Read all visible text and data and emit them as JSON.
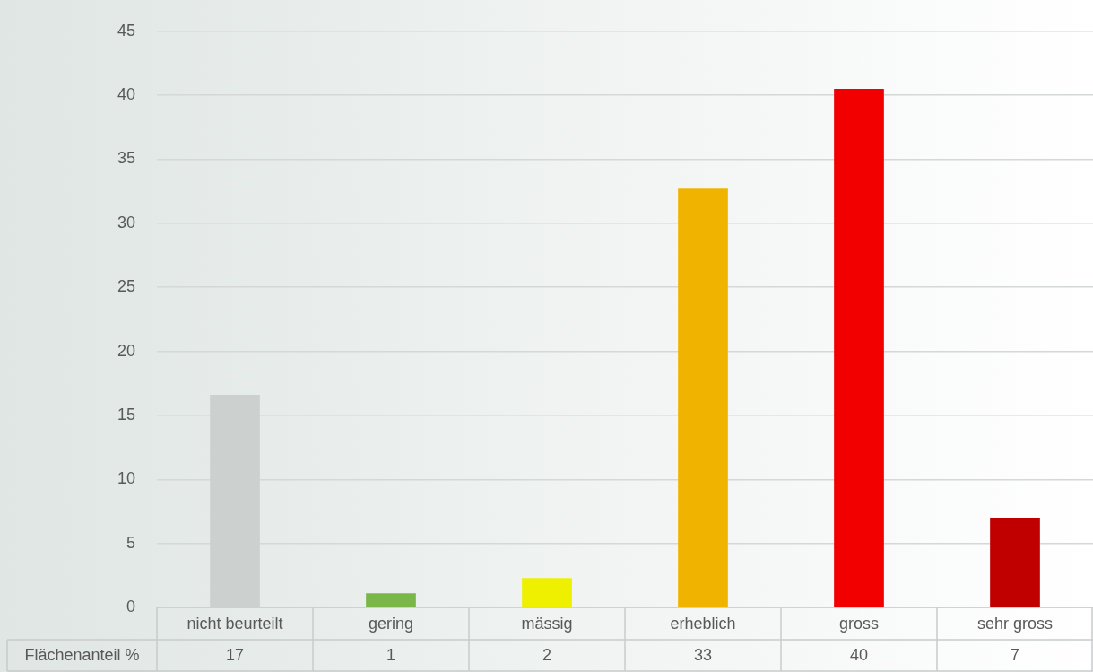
{
  "chart_data": {
    "type": "bar",
    "categories": [
      "nicht beurteilt",
      "gering",
      "mässig",
      "erheblich",
      "gross",
      "sehr gross"
    ],
    "series": [
      {
        "name": "Flächenanteil %",
        "colors": [
          "#ccd0ce",
          "#7ab648",
          "#eef000",
          "#f0b400",
          "#f20000",
          "#c00000"
        ],
        "values": [
          16.6,
          1.1,
          2.3,
          32.7,
          40.5,
          7.0
        ],
        "value_labels": [
          "17",
          "1",
          "2",
          "33",
          "40",
          "7"
        ]
      }
    ],
    "ylim": [
      0,
      45
    ],
    "yticks": [
      0,
      5,
      10,
      15,
      20,
      25,
      30,
      35,
      40,
      45
    ],
    "grid": "y"
  }
}
